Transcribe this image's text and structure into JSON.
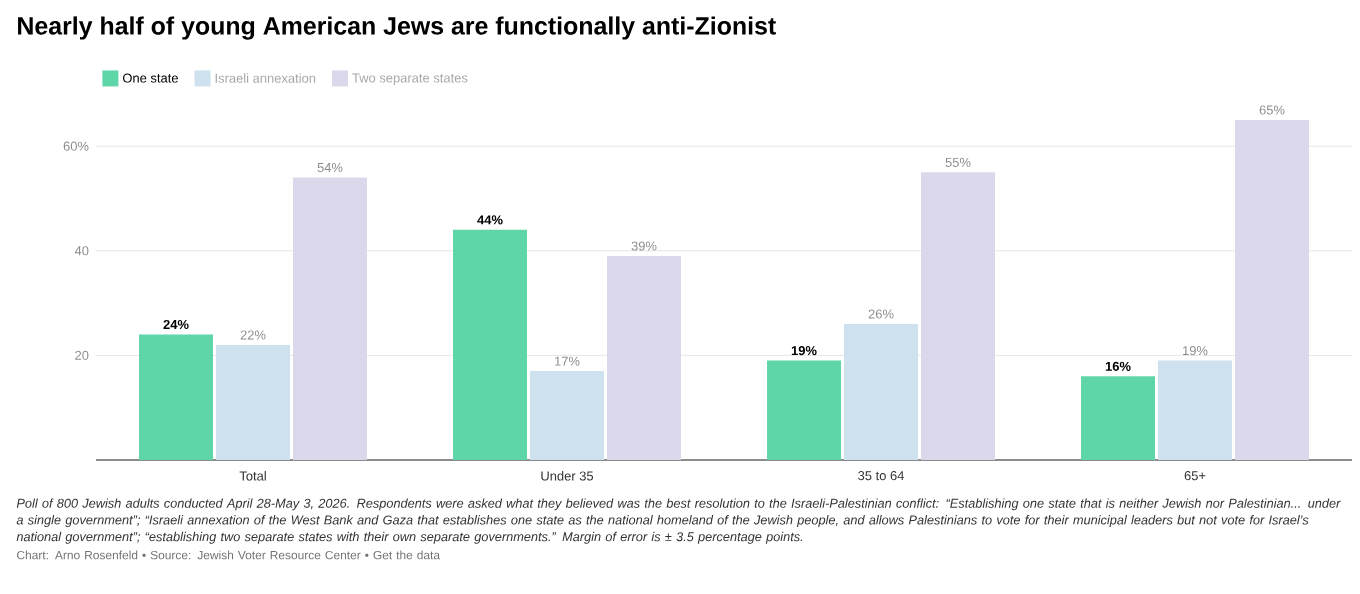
{
  "chart_data": {
    "type": "bar",
    "title": "Nearly half of young American Jews are functionally anti-Zionist",
    "categories": [
      "Total",
      "Under 35",
      "35 to 64",
      "65+"
    ],
    "series": [
      {
        "name": "One state",
        "color": "#5fd6a8",
        "values": [
          24,
          44,
          19,
          16
        ],
        "value_labels": [
          "24%",
          "44%",
          "19%",
          "16%"
        ]
      },
      {
        "name": "Israeli annexation",
        "color": "#cde2ee",
        "values": [
          22,
          17,
          26,
          19
        ],
        "value_labels": [
          "22%",
          "17%",
          "26%",
          "19%"
        ]
      },
      {
        "name": "Two separate states",
        "color": "#dcd8eb",
        "values": [
          54,
          39,
          55,
          65
        ],
        "value_labels": [
          "54%",
          "39%",
          "55%",
          "65%"
        ]
      }
    ],
    "ylim": [
      0,
      65
    ],
    "yticks": [
      20,
      40,
      {
        "value": 60,
        "label": "60%"
      }
    ],
    "grid": "y",
    "legend": "top left",
    "annotations": [
      "Poll of 800 Jewish adults conducted April 28-May 3, 2026. Respondents were asked what they believed was the best resolution to the Israeli-Palestinian conflict: “Establishing one state that is neither Jewish nor Palestinian... under a single government”; “Israeli annexation of the West Bank and Gaza that establishes one state as the national homeland of the Jewish people, and allows Palestinians to vote for their municipal leaders but not vote for Israel’s national government”; “establishing two separate states with their own separate governments.” Margin of error is ± 3.5 percentage points.",
      "Chart: Arno Rosenfeld • Source: Jewish Voter Resource Center • Get the data"
    ]
  }
}
